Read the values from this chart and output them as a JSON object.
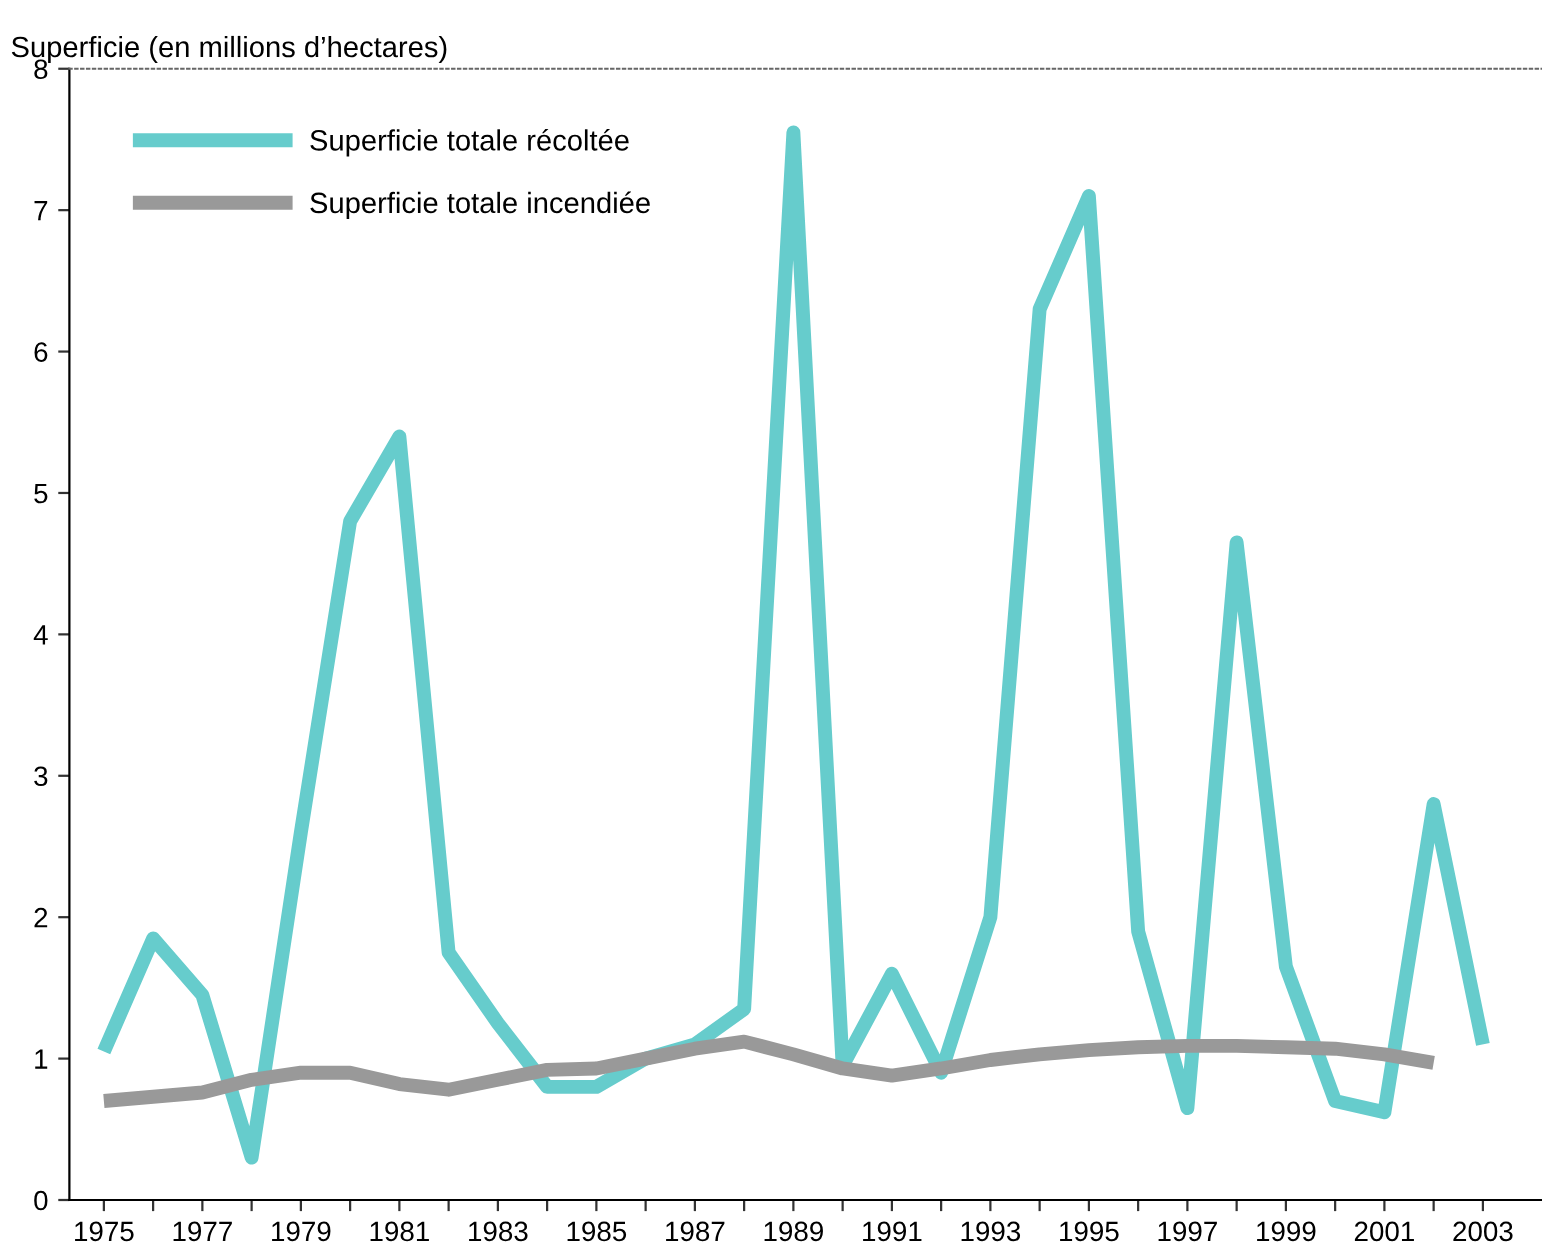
{
  "chart_data": {
    "type": "line",
    "ylabel": "Superficie (en millions d’hectares)",
    "x": [
      1975,
      1976,
      1977,
      1978,
      1979,
      1980,
      1981,
      1982,
      1983,
      1984,
      1985,
      1986,
      1987,
      1988,
      1989,
      1990,
      1991,
      1992,
      1993,
      1994,
      1995,
      1996,
      1997,
      1998,
      1999,
      2000,
      2001,
      2002,
      2003
    ],
    "series": [
      {
        "name": "Superficie totale récoltée",
        "color": "#66cccc",
        "values": [
          1.05,
          1.85,
          1.45,
          0.3,
          2.6,
          4.8,
          5.4,
          1.75,
          1.25,
          0.8,
          0.8,
          1.0,
          1.1,
          1.35,
          7.55,
          0.95,
          1.6,
          0.9,
          2.0,
          6.3,
          7.1,
          1.9,
          0.65,
          4.65,
          1.65,
          0.7,
          0.62,
          2.8,
          1.1
        ]
      },
      {
        "name": "Superficie totale incendiée",
        "color": "#999999",
        "values": [
          0.7,
          0.73,
          0.76,
          0.85,
          0.9,
          0.9,
          0.82,
          0.78,
          0.85,
          0.92,
          0.93,
          1.0,
          1.07,
          1.12,
          1.03,
          0.93,
          0.88,
          0.93,
          0.99,
          1.03,
          1.06,
          1.08,
          1.09,
          1.09,
          1.08,
          1.07,
          1.03,
          0.97,
          null
        ]
      }
    ],
    "xlim": [
      1974.3,
      2004.2
    ],
    "ylim": [
      0,
      8
    ],
    "yticks": [
      0,
      1,
      2,
      3,
      4,
      5,
      6,
      7,
      8
    ],
    "xticks": [
      1975,
      {
        "value": 1976,
        "label": null
      },
      1977,
      {
        "value": 1978,
        "label": null
      },
      1979,
      {
        "value": 1980,
        "label": null
      },
      1981,
      {
        "value": 1982,
        "label": null
      },
      1983,
      {
        "value": 1984,
        "label": null
      },
      1985,
      {
        "value": 1986,
        "label": null
      },
      1987,
      {
        "value": 1988,
        "label": null
      },
      1989,
      {
        "value": 1990,
        "label": null
      },
      1991,
      {
        "value": 1992,
        "label": null
      },
      1993,
      {
        "value": 1994,
        "label": null
      },
      1995,
      {
        "value": 1996,
        "label": null
      },
      1997,
      {
        "value": 1998,
        "label": null
      },
      1999,
      {
        "value": 2000,
        "label": null
      },
      2001,
      {
        "value": 2002,
        "label": null
      },
      2003
    ],
    "grid": false,
    "legend": "top left",
    "marker": "none",
    "line_style": "solid"
  }
}
